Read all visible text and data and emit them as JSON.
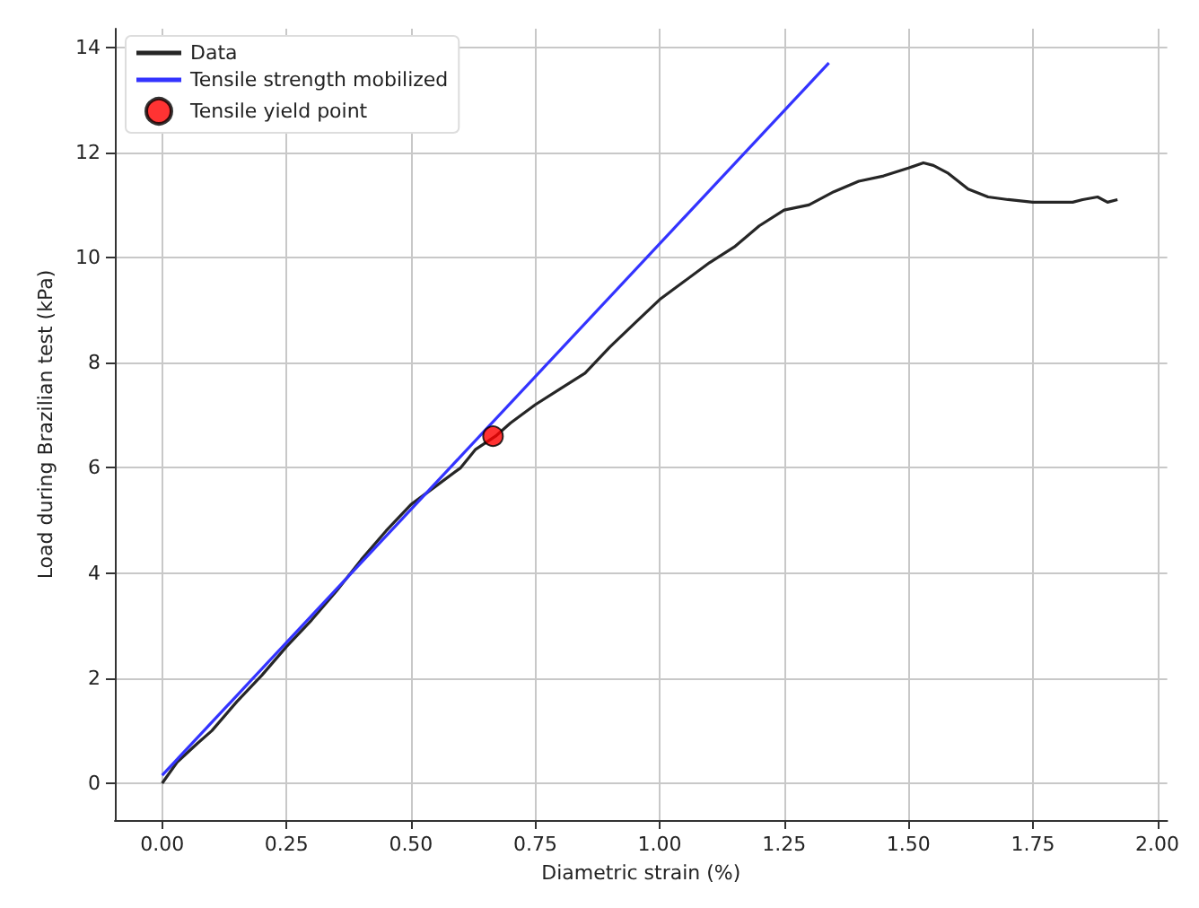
{
  "chart_data": {
    "type": "line",
    "xlabel": "Diametric strain (%)",
    "ylabel": "Load during Brazilian test (kPa)",
    "xlim": [
      -0.095,
      2.02
    ],
    "ylim": [
      -0.7,
      14.35
    ],
    "xticks": [
      {
        "value": 0,
        "label": "0.00"
      },
      {
        "value": 0.25,
        "label": "0.25"
      },
      {
        "value": 0.5,
        "label": "0.50"
      },
      {
        "value": 0.75,
        "label": "0.75"
      },
      {
        "value": 1,
        "label": "1.00"
      },
      {
        "value": 1.25,
        "label": "1.25"
      },
      {
        "value": 1.5,
        "label": "1.50"
      },
      {
        "value": 1.75,
        "label": "1.75"
      },
      {
        "value": 2,
        "label": "2.00"
      }
    ],
    "yticks": [
      0,
      2,
      4,
      6,
      8,
      10,
      12,
      14
    ],
    "grid": true,
    "legend": "top left",
    "series": [
      {
        "name": "Data",
        "color": "#262626",
        "x": [
          0,
          0.03,
          0.07,
          0.1,
          0.15,
          0.2,
          0.25,
          0.3,
          0.35,
          0.4,
          0.45,
          0.5,
          0.55,
          0.6,
          0.63,
          0.67,
          0.7,
          0.75,
          0.8,
          0.85,
          0.9,
          0.95,
          1.0,
          1.05,
          1.1,
          1.15,
          1.2,
          1.25,
          1.3,
          1.35,
          1.4,
          1.45,
          1.5,
          1.53,
          1.55,
          1.58,
          1.62,
          1.66,
          1.7,
          1.75,
          1.8,
          1.83,
          1.85,
          1.88,
          1.9,
          1.92
        ],
        "values": [
          0,
          0.4,
          0.75,
          1.0,
          1.55,
          2.05,
          2.6,
          3.1,
          3.65,
          4.25,
          4.8,
          5.3,
          5.65,
          6.0,
          6.35,
          6.6,
          6.85,
          7.2,
          7.5,
          7.8,
          8.3,
          8.75,
          9.2,
          9.55,
          9.9,
          10.2,
          10.6,
          10.9,
          11.0,
          11.25,
          11.45,
          11.55,
          11.7,
          11.8,
          11.75,
          11.6,
          11.3,
          11.15,
          11.1,
          11.05,
          11.05,
          11.05,
          11.1,
          11.15,
          11.05,
          11.1
        ]
      },
      {
        "name": "Tensile strength mobilized",
        "color": "#3333ff",
        "x": [
          0,
          1.34
        ],
        "values": [
          0.15,
          13.7
        ]
      },
      {
        "name": "Tensile yield point",
        "type": "scatter",
        "color": "#ff0000",
        "marker": "circle",
        "x": [
          0.665
        ],
        "values": [
          6.6
        ]
      }
    ]
  }
}
